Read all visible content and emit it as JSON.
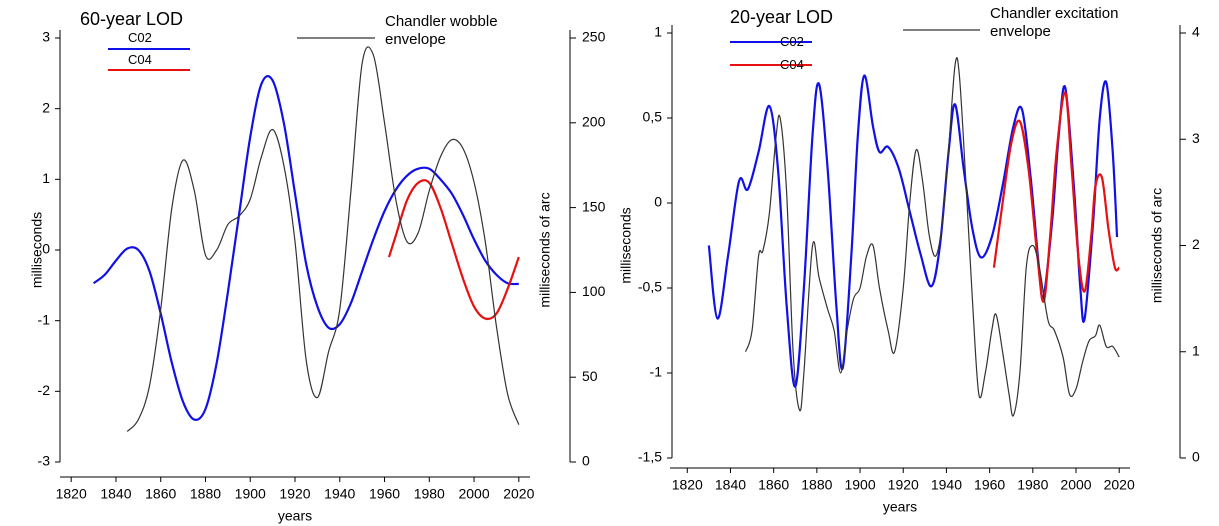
{
  "chart_data": [
    {
      "type": "line",
      "title": "60-year LOD",
      "xlabel": "years",
      "ylabel": "milliseconds",
      "y2label": "milliseconds of arc",
      "xlim": [
        1815,
        2025
      ],
      "xticks": [
        1820,
        1840,
        1860,
        1880,
        1900,
        1920,
        1940,
        1960,
        1980,
        2000,
        2020
      ],
      "ylim": [
        -3,
        3
      ],
      "yticks": [
        -3,
        -2,
        -1,
        0,
        1,
        2,
        3
      ],
      "y2lim": [
        0,
        250
      ],
      "y2ticks": [
        0,
        50,
        100,
        150,
        200,
        250
      ],
      "series": [
        {
          "name": "C02",
          "color": "#1010e8",
          "x": [
            1830,
            1835,
            1840,
            1845,
            1850,
            1855,
            1860,
            1865,
            1870,
            1875,
            1880,
            1885,
            1890,
            1895,
            1900,
            1905,
            1910,
            1915,
            1920,
            1925,
            1930,
            1935,
            1940,
            1945,
            1950,
            1955,
            1960,
            1965,
            1970,
            1975,
            1980,
            1985,
            1990,
            1995,
            2000,
            2005,
            2010,
            2015,
            2020
          ],
          "values": [
            -0.47,
            -0.35,
            -0.15,
            0.02,
            0.0,
            -0.3,
            -0.9,
            -1.6,
            -2.15,
            -2.4,
            -2.25,
            -1.6,
            -0.6,
            0.5,
            1.6,
            2.35,
            2.4,
            1.8,
            0.8,
            -0.2,
            -0.8,
            -1.1,
            -1.05,
            -0.75,
            -0.3,
            0.15,
            0.55,
            0.85,
            1.05,
            1.15,
            1.15,
            1.0,
            0.8,
            0.5,
            0.15,
            -0.15,
            -0.35,
            -0.47,
            -0.48
          ]
        },
        {
          "name": "C04",
          "color": "#e81010",
          "x": [
            1962,
            1965,
            1970,
            1975,
            1980,
            1985,
            1990,
            1995,
            2000,
            2005,
            2010,
            2015,
            2020
          ],
          "values": [
            -0.1,
            0.2,
            0.7,
            0.95,
            0.95,
            0.6,
            0.1,
            -0.4,
            -0.8,
            -0.97,
            -0.9,
            -0.55,
            -0.1
          ]
        },
        {
          "name": "Chandler wobble envelope",
          "color": "#333333",
          "axis": "y2",
          "x": [
            1845,
            1850,
            1855,
            1860,
            1865,
            1870,
            1875,
            1880,
            1885,
            1890,
            1895,
            1900,
            1905,
            1910,
            1915,
            1920,
            1925,
            1930,
            1935,
            1940,
            1945,
            1950,
            1955,
            1960,
            1965,
            1970,
            1975,
            1980,
            1985,
            1990,
            1995,
            2000,
            2005,
            2010,
            2015,
            2020
          ],
          "values": [
            18,
            25,
            45,
            90,
            150,
            178,
            160,
            122,
            125,
            140,
            145,
            155,
            180,
            196,
            175,
            130,
            60,
            38,
            65,
            90,
            160,
            235,
            240,
            200,
            155,
            130,
            135,
            160,
            180,
            190,
            185,
            165,
            130,
            80,
            40,
            22
          ]
        }
      ]
    },
    {
      "type": "line",
      "title": "20-year LOD",
      "xlabel": "years",
      "ylabel": "milliseconds",
      "y2label": "milliseconds of arc",
      "xlim": [
        1812,
        2025
      ],
      "xticks": [
        1820,
        1840,
        1860,
        1880,
        1900,
        1920,
        1940,
        1960,
        1980,
        2000,
        2020
      ],
      "ylim": [
        -1.5,
        1
      ],
      "yticks": [
        {
          "value": -1.5,
          "label": "-1,5"
        },
        -1,
        {
          "value": -0.5,
          "label": "-0,5"
        },
        0,
        {
          "value": 0.5,
          "label": "0,5"
        },
        1
      ],
      "y2lim": [
        0,
        4
      ],
      "y2ticks": [
        0,
        1,
        2,
        3,
        4
      ],
      "series": [
        {
          "name": "C02",
          "color": "#1010e8",
          "x": [
            1830,
            1834,
            1839,
            1844,
            1848,
            1853,
            1858,
            1862,
            1866,
            1870,
            1874,
            1878,
            1881,
            1885,
            1889,
            1892,
            1896,
            1899,
            1902,
            1906,
            1909,
            1913,
            1918,
            1923,
            1928,
            1933,
            1937,
            1941,
            1944,
            1948,
            1952,
            1956,
            1961,
            1966,
            1971,
            1975,
            1979,
            1983,
            1985,
            1989,
            1992,
            1995,
            1999,
            2002,
            2004,
            2008,
            2011,
            2014,
            2017,
            2019
          ],
          "values": [
            -0.25,
            -0.68,
            -0.3,
            0.13,
            0.08,
            0.3,
            0.57,
            0.2,
            -0.6,
            -1.08,
            -0.5,
            0.4,
            0.7,
            0.2,
            -0.6,
            -0.97,
            -0.3,
            0.4,
            0.75,
            0.45,
            0.3,
            0.33,
            0.2,
            -0.05,
            -0.3,
            -0.49,
            -0.25,
            0.3,
            0.58,
            0.2,
            -0.15,
            -0.32,
            -0.2,
            0.1,
            0.45,
            0.55,
            0.15,
            -0.4,
            -0.55,
            -0.1,
            0.4,
            0.68,
            0.1,
            -0.5,
            -0.68,
            -0.1,
            0.5,
            0.71,
            0.3,
            -0.2
          ]
        },
        {
          "name": "C04",
          "color": "#e81010",
          "x": [
            1962,
            1966,
            1970,
            1974,
            1978,
            1982,
            1985,
            1988,
            1991,
            1995,
            1998,
            2001,
            2004,
            2007,
            2009,
            2012,
            2015,
            2018,
            2020
          ],
          "values": [
            -0.38,
            0.0,
            0.35,
            0.48,
            0.2,
            -0.3,
            -0.58,
            -0.2,
            0.3,
            0.65,
            0.2,
            -0.3,
            -0.52,
            -0.2,
            0.1,
            0.15,
            -0.15,
            -0.38,
            -0.38
          ]
        },
        {
          "name": "Chandler excitation envelope",
          "color": "#333333",
          "axis": "y2",
          "x": [
            1847,
            1850,
            1853,
            1855,
            1858,
            1861,
            1863,
            1866,
            1869,
            1872,
            1874,
            1878,
            1881,
            1885,
            1888,
            1891,
            1894,
            1897,
            1900,
            1903,
            1906,
            1909,
            1913,
            1916,
            1920,
            1923,
            1926,
            1929,
            1932,
            1935,
            1938,
            1941,
            1944,
            1946,
            1949,
            1952,
            1955,
            1958,
            1961,
            1963,
            1966,
            1969,
            1971,
            1974,
            1977,
            1980,
            1983,
            1987,
            1990,
            1994,
            1997,
            2000,
            2003,
            2006,
            2009,
            2011,
            2014,
            2017,
            2020
          ],
          "values": [
            1.0,
            1.2,
            1.9,
            1.95,
            2.3,
            3.0,
            3.2,
            2.5,
            1.0,
            0.45,
            0.8,
            2.0,
            1.7,
            1.4,
            1.2,
            0.8,
            1.2,
            1.5,
            1.6,
            1.9,
            2.0,
            1.6,
            1.2,
            1.0,
            1.6,
            2.4,
            2.9,
            2.6,
            2.1,
            1.9,
            2.2,
            2.9,
            3.7,
            3.6,
            2.6,
            1.5,
            0.6,
            0.8,
            1.2,
            1.35,
            1.0,
            0.6,
            0.4,
            0.8,
            1.8,
            2.0,
            1.8,
            1.3,
            1.2,
            0.95,
            0.6,
            0.65,
            0.9,
            1.1,
            1.15,
            1.25,
            1.05,
            1.05,
            0.95
          ]
        }
      ]
    }
  ]
}
